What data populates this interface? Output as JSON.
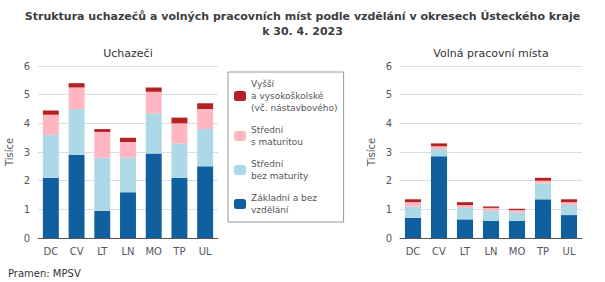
{
  "title": "Struktura uchazečů a volných pracovních míst podle vzdělání v okresech Ústeckého kraje\nk 30. 4. 2023",
  "annotations": [
    "Pramen: MPSV"
  ],
  "chart_data": [
    {
      "type": "bar",
      "title": "Uchazeči",
      "categories": [
        "DC",
        "CV",
        "LT",
        "LN",
        "MO",
        "TP",
        "UL"
      ],
      "series": [
        {
          "name": "Základní a bez\nvzdělání",
          "color": "#1060a0",
          "values": [
            2.1,
            2.9,
            0.95,
            1.6,
            2.95,
            2.1,
            2.5
          ]
        },
        {
          "name": "Střední\nbez maturity",
          "color": "#add8e6",
          "values": [
            1.5,
            1.6,
            1.85,
            1.2,
            1.4,
            1.2,
            1.3
          ]
        },
        {
          "name": "Střední\ns maturitou",
          "color": "#ffb6c1",
          "values": [
            0.7,
            0.75,
            0.9,
            0.55,
            0.75,
            0.7,
            0.7
          ]
        },
        {
          "name": "Vyšší\na vysokoškolské\n(vč. nástavbového)",
          "color": "#b22222",
          "values": [
            0.15,
            0.15,
            0.1,
            0.15,
            0.15,
            0.2,
            0.2
          ]
        }
      ],
      "stacked": true,
      "ylabel": "Tisíce",
      "ylim": [
        0,
        6
      ],
      "yticks": [
        0,
        1,
        2,
        3,
        4,
        5,
        6
      ],
      "grid": true,
      "legend": "right"
    },
    {
      "type": "bar",
      "title": "Volná pracovní místa",
      "categories": [
        "DC",
        "CV",
        "LT",
        "LN",
        "MO",
        "TP",
        "UL"
      ],
      "series": [
        {
          "name": "Základní a bez\nvzdělání",
          "color": "#1060a0",
          "values": [
            0.7,
            2.85,
            0.65,
            0.6,
            0.6,
            1.35,
            0.8
          ]
        },
        {
          "name": "Střední\nbez maturity",
          "color": "#add8e6",
          "values": [
            0.4,
            0.25,
            0.4,
            0.35,
            0.3,
            0.55,
            0.35
          ]
        },
        {
          "name": "Střední\ns maturitou",
          "color": "#ffb6c1",
          "values": [
            0.15,
            0.1,
            0.1,
            0.1,
            0.07,
            0.1,
            0.1
          ]
        },
        {
          "name": "Vyšší\na vysokoškolské\n(vč. nástavbového)",
          "color": "#b22222",
          "values": [
            0.1,
            0.1,
            0.1,
            0.05,
            0.05,
            0.1,
            0.1
          ]
        }
      ],
      "stacked": true,
      "ylabel": "Tisíce",
      "ylim": [
        0,
        6
      ],
      "yticks": [
        0,
        1,
        2,
        3,
        4,
        5,
        6
      ],
      "grid": true
    }
  ]
}
